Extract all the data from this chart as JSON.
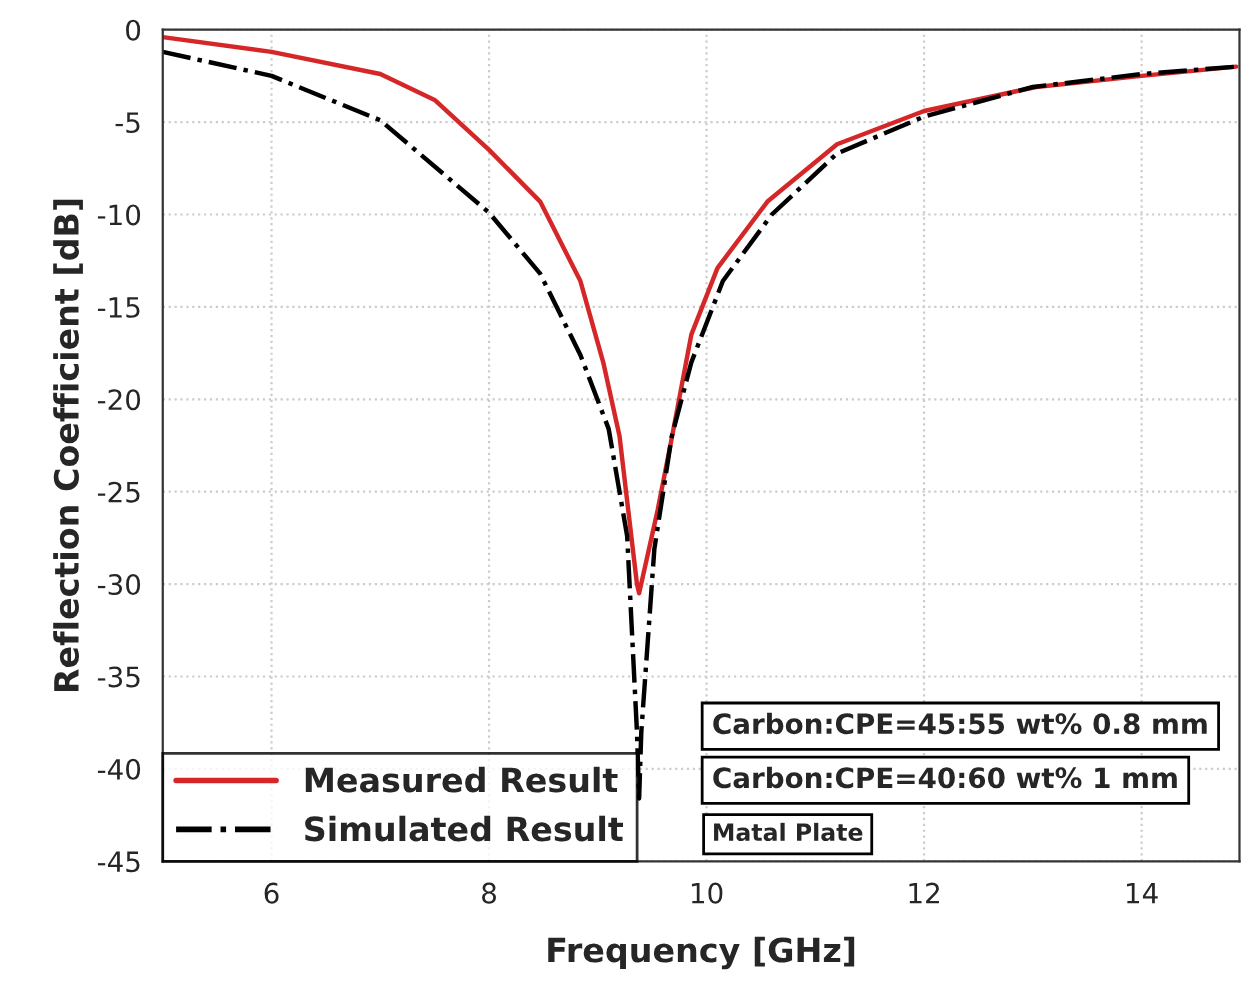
{
  "chart_data": {
    "type": "line",
    "xlabel": "Frequency [GHz]",
    "ylabel": "Reflection Coefficient [dB]",
    "xlim": [
      5,
      14.9
    ],
    "ylim": [
      -45,
      0
    ],
    "xticks": [
      6,
      8,
      10,
      12,
      14
    ],
    "yticks": [
      -45,
      -40,
      -35,
      -30,
      -25,
      -20,
      -15,
      -10,
      -5,
      0
    ],
    "grid": true,
    "legend": "bottom left",
    "series": [
      {
        "name": "Measured Result",
        "color": "#d62728",
        "line_style": "solid",
        "x": [
          5.0,
          6.0,
          7.0,
          7.5,
          8.0,
          8.47,
          8.84,
          9.05,
          9.2,
          9.36,
          9.38,
          9.55,
          9.68,
          9.86,
          10.1,
          10.56,
          11.2,
          12.0,
          13.03,
          14.0,
          14.87
        ],
        "values": [
          -0.4,
          -1.2,
          -2.4,
          -3.8,
          -6.5,
          -9.3,
          -13.6,
          -18,
          -22,
          -30,
          -30.5,
          -26,
          -22.1,
          -16.5,
          -12.9,
          -9.3,
          -6.2,
          -4.4,
          -3.1,
          -2.5,
          -2.0
        ]
      },
      {
        "name": "Simulated Result",
        "color": "#000000",
        "line_style": "dashdot",
        "x": [
          5.0,
          6.0,
          7.0,
          8.0,
          8.47,
          8.84,
          9.1,
          9.27,
          9.36,
          9.38,
          9.4,
          9.52,
          9.68,
          9.86,
          10.15,
          10.6,
          11.2,
          12.0,
          13.0,
          14.0,
          14.87
        ],
        "values": [
          -1.2,
          -2.5,
          -4.9,
          -9.9,
          -13.2,
          -17.6,
          -21.6,
          -27.4,
          -38,
          -41.6,
          -38,
          -28.1,
          -22,
          -18,
          -13.6,
          -10,
          -6.7,
          -4.7,
          -3.1,
          -2.4,
          -2.0
        ]
      }
    ],
    "annotations": [
      "Carbon:CPE=45:55 wt% 0.8 mm",
      "Carbon:CPE=40:60 wt% 1 mm",
      "Matal Plate"
    ]
  }
}
